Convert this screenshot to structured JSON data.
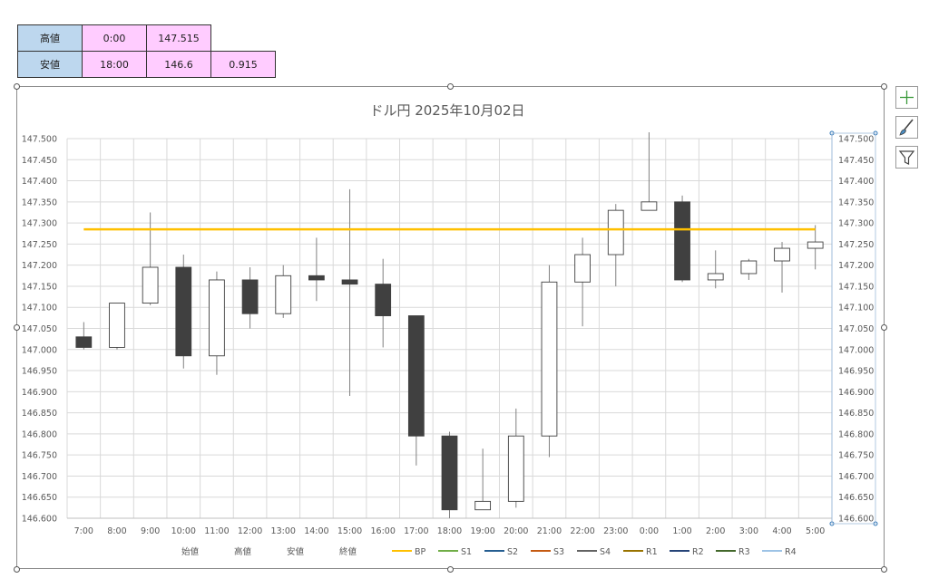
{
  "summary_table": {
    "rows": [
      {
        "label": "高値",
        "time": "0:00",
        "value": "147.515",
        "extra": ""
      },
      {
        "label": "安値",
        "time": "18:00",
        "value": "146.6",
        "extra": "0.915"
      }
    ]
  },
  "side_buttons": [
    {
      "name": "chart-elements-button",
      "icon": "plus-icon"
    },
    {
      "name": "chart-styles-button",
      "icon": "paintbrush-icon"
    },
    {
      "name": "chart-filters-button",
      "icon": "filter-icon"
    }
  ],
  "chart_data": {
    "type": "candlestick",
    "title": "ドル円  2025年10月02日",
    "categories": [
      "7:00",
      "8:00",
      "9:00",
      "10:00",
      "11:00",
      "12:00",
      "13:00",
      "14:00",
      "15:00",
      "16:00",
      "17:00",
      "18:00",
      "19:00",
      "20:00",
      "21:00",
      "22:00",
      "23:00",
      "0:00",
      "1:00",
      "2:00",
      "3:00",
      "4:00",
      "5:00"
    ],
    "candles": [
      {
        "open": 147.03,
        "high": 147.065,
        "low": 147.0,
        "close": 147.005
      },
      {
        "open": 147.005,
        "high": 147.11,
        "low": 147.0,
        "close": 147.11
      },
      {
        "open": 147.11,
        "high": 147.325,
        "low": 147.105,
        "close": 147.195
      },
      {
        "open": 147.195,
        "high": 147.225,
        "low": 146.955,
        "close": 146.985
      },
      {
        "open": 146.985,
        "high": 147.185,
        "low": 146.94,
        "close": 147.165
      },
      {
        "open": 147.165,
        "high": 147.195,
        "low": 147.05,
        "close": 147.085
      },
      {
        "open": 147.085,
        "high": 147.2,
        "low": 147.075,
        "close": 147.175
      },
      {
        "open": 147.175,
        "high": 147.265,
        "low": 147.115,
        "close": 147.165
      },
      {
        "open": 147.165,
        "high": 147.38,
        "low": 146.89,
        "close": 147.155
      },
      {
        "open": 147.155,
        "high": 147.215,
        "low": 147.005,
        "close": 147.08
      },
      {
        "open": 147.08,
        "high": 147.08,
        "low": 146.725,
        "close": 146.795
      },
      {
        "open": 146.795,
        "high": 146.805,
        "low": 146.6,
        "close": 146.62
      },
      {
        "open": 146.62,
        "high": 146.765,
        "low": 146.62,
        "close": 146.64
      },
      {
        "open": 146.64,
        "high": 146.86,
        "low": 146.625,
        "close": 146.795
      },
      {
        "open": 146.795,
        "high": 147.2,
        "low": 146.745,
        "close": 147.16
      },
      {
        "open": 147.16,
        "high": 147.265,
        "low": 147.055,
        "close": 147.225
      },
      {
        "open": 147.225,
        "high": 147.345,
        "low": 147.15,
        "close": 147.33
      },
      {
        "open": 147.33,
        "high": 147.515,
        "low": 147.33,
        "close": 147.35
      },
      {
        "open": 147.35,
        "high": 147.365,
        "low": 147.16,
        "close": 147.165
      },
      {
        "open": 147.165,
        "high": 147.235,
        "low": 147.145,
        "close": 147.18
      },
      {
        "open": 147.18,
        "high": 147.215,
        "low": 147.165,
        "close": 147.21
      },
      {
        "open": 147.21,
        "high": 147.255,
        "low": 147.135,
        "close": 147.24
      },
      {
        "open": 147.24,
        "high": 147.295,
        "low": 147.19,
        "close": 147.255
      }
    ],
    "lines": [
      {
        "name": "BP",
        "value": 147.285,
        "color": "#ffc000"
      }
    ],
    "ylim": [
      146.6,
      147.5
    ],
    "y_ticks": [
      "146.600",
      "146.650",
      "146.700",
      "146.750",
      "146.800",
      "146.850",
      "146.900",
      "146.950",
      "147.000",
      "147.050",
      "147.100",
      "147.150",
      "147.200",
      "147.250",
      "147.300",
      "147.350",
      "147.400",
      "147.450",
      "147.500"
    ],
    "grid": true,
    "legend_position": "bottom",
    "legend": [
      {
        "name": "始値",
        "color": ""
      },
      {
        "name": "高値",
        "color": ""
      },
      {
        "name": "安値",
        "color": ""
      },
      {
        "name": "終値",
        "color": ""
      },
      {
        "name": "BP",
        "color": "#ffc000"
      },
      {
        "name": "S1",
        "color": "#70ad47"
      },
      {
        "name": "S2",
        "color": "#255e91"
      },
      {
        "name": "S3",
        "color": "#c55a11"
      },
      {
        "name": "S4",
        "color": "#636363"
      },
      {
        "name": "R1",
        "color": "#997300"
      },
      {
        "name": "R2",
        "color": "#264478"
      },
      {
        "name": "R3",
        "color": "#43682b"
      },
      {
        "name": "R4",
        "color": "#9dc3e6"
      }
    ],
    "colors": {
      "up_fill": "#ffffff",
      "down_fill": "#404040",
      "outline": "#404040",
      "wick": "#808080"
    }
  }
}
